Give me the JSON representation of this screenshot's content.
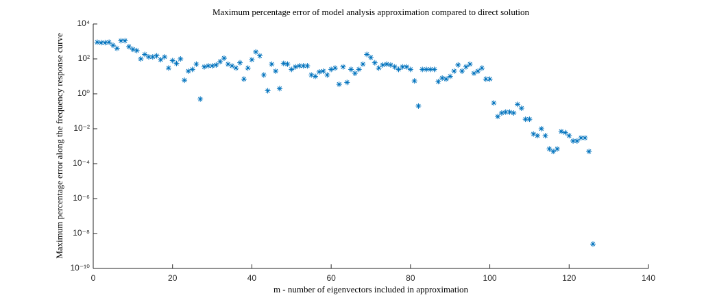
{
  "chart_data": {
    "type": "scatter",
    "title": "Maximum percentage error of model analysis approximation compared to direct solution",
    "xlabel": "m - number of eigenvectors included in approximation",
    "ylabel": "Maximum percentage error along the frequency response curve",
    "yscale": "log",
    "grid": false,
    "marker": "*",
    "color": "#0072BD",
    "xlim": [
      0,
      140
    ],
    "xticks": [
      0,
      20,
      40,
      60,
      80,
      100,
      120,
      140
    ],
    "ylim": [
      1e-10,
      10000
    ],
    "yticks": [
      {
        "value": 1e-10,
        "label": "10⁻¹⁰"
      },
      {
        "value": 1e-08,
        "label": "10⁻⁸"
      },
      {
        "value": 1e-06,
        "label": "10⁻⁶"
      },
      {
        "value": 0.0001,
        "label": "10⁻⁴"
      },
      {
        "value": 0.01,
        "label": "10⁻²"
      },
      {
        "value": 1,
        "label": "10⁰"
      },
      {
        "value": 100,
        "label": "10²"
      },
      {
        "value": 10000,
        "label": "10⁴"
      }
    ],
    "x": [
      1,
      2,
      3,
      4,
      5,
      6,
      7,
      8,
      9,
      10,
      11,
      12,
      13,
      14,
      15,
      16,
      17,
      18,
      19,
      20,
      21,
      22,
      23,
      24,
      25,
      26,
      27,
      28,
      29,
      30,
      31,
      32,
      33,
      34,
      35,
      36,
      37,
      38,
      39,
      40,
      41,
      42,
      43,
      44,
      45,
      46,
      47,
      48,
      49,
      50,
      51,
      52,
      53,
      54,
      55,
      56,
      57,
      58,
      59,
      60,
      61,
      62,
      63,
      64,
      65,
      66,
      67,
      68,
      69,
      70,
      71,
      72,
      73,
      74,
      75,
      76,
      77,
      78,
      79,
      80,
      81,
      82,
      83,
      84,
      85,
      86,
      87,
      88,
      89,
      90,
      91,
      92,
      93,
      94,
      95,
      96,
      97,
      98,
      99,
      100,
      101,
      102,
      103,
      104,
      105,
      106,
      107,
      108,
      109,
      110,
      111,
      112,
      113,
      114,
      115,
      116,
      117,
      118,
      119,
      120,
      121,
      122,
      123,
      124,
      125,
      126
    ],
    "values": [
      900,
      850,
      850,
      900,
      600,
      400,
      1100,
      1100,
      500,
      350,
      300,
      100,
      180,
      130,
      130,
      150,
      90,
      130,
      30,
      80,
      55,
      100,
      6,
      20,
      25,
      50,
      0.5,
      35,
      40,
      40,
      45,
      70,
      110,
      50,
      40,
      30,
      60,
      7,
      30,
      90,
      250,
      150,
      12,
      1.5,
      50,
      20,
      2,
      55,
      50,
      25,
      35,
      40,
      40,
      40,
      12,
      10,
      18,
      20,
      12,
      25,
      30,
      3.5,
      35,
      4.5,
      25,
      15,
      25,
      50,
      180,
      120,
      60,
      30,
      45,
      50,
      45,
      35,
      25,
      35,
      35,
      25,
      5.5,
      0.2,
      25,
      25,
      25,
      25,
      5,
      8,
      7,
      10,
      20,
      45,
      20,
      35,
      50,
      15,
      20,
      30,
      7,
      7,
      0.3,
      0.05,
      0.08,
      0.09,
      0.09,
      0.08,
      0.25,
      0.15,
      0.035,
      0.035,
      0.005,
      0.004,
      0.01,
      0.004,
      0.0007,
      0.0005,
      0.0007,
      0.007,
      0.006,
      0.004,
      0.002,
      0.002,
      0.003,
      0.003,
      0.0005,
      2.5e-09
    ]
  }
}
